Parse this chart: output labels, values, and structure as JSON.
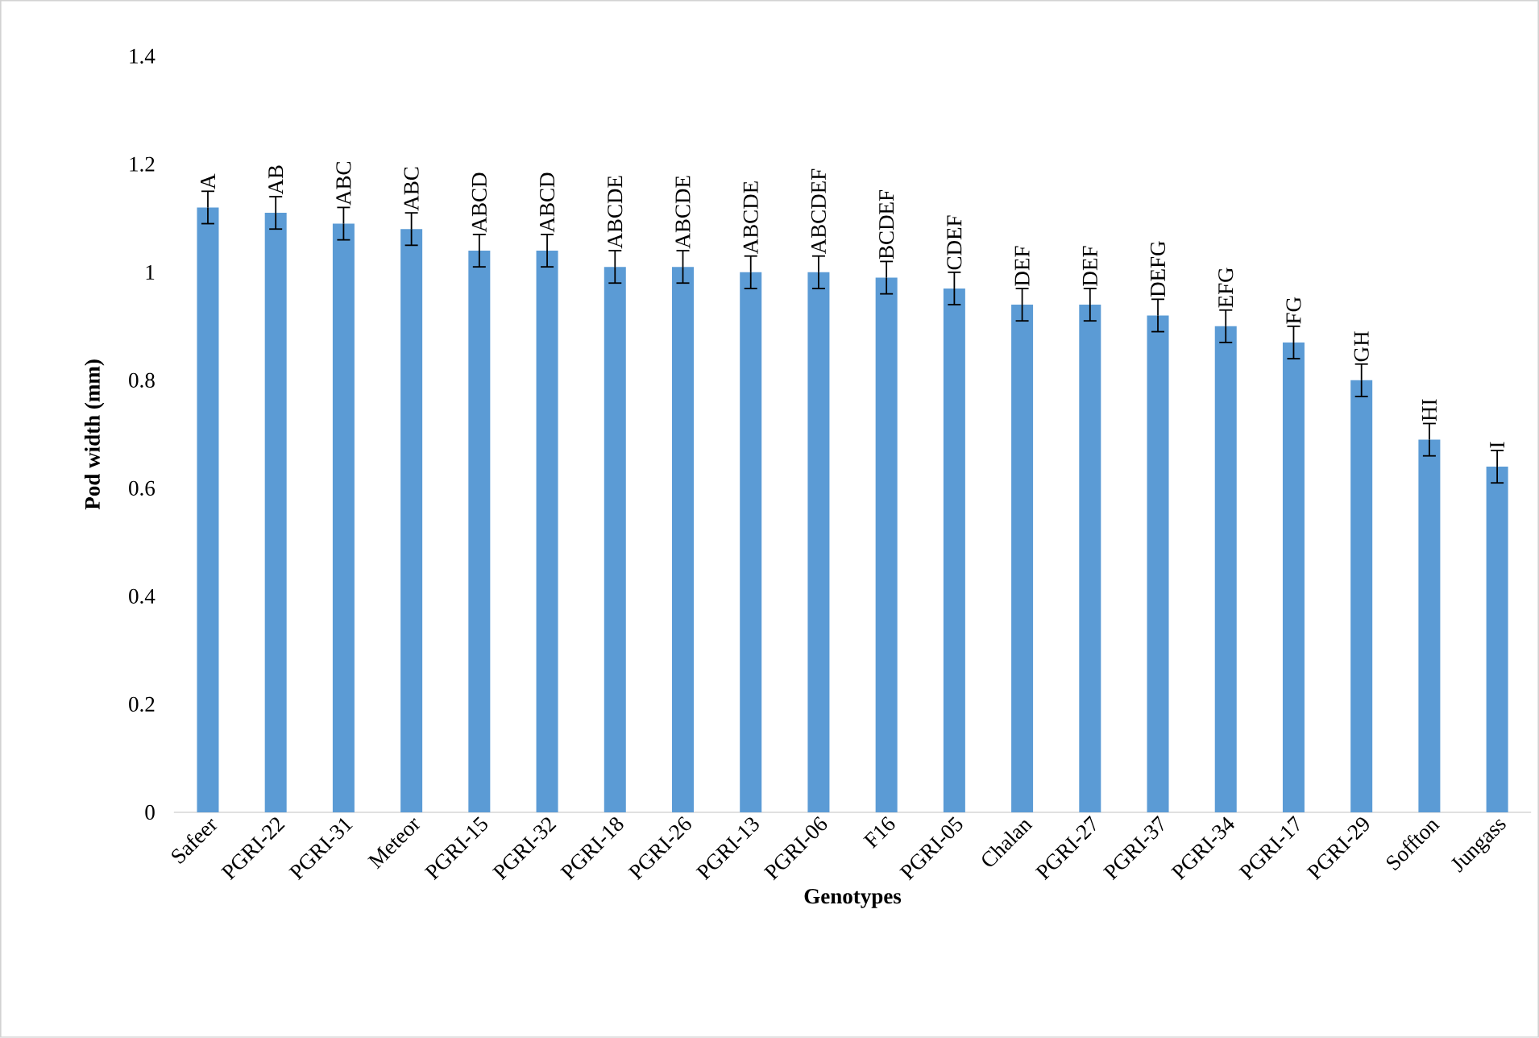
{
  "chart_data": {
    "type": "bar",
    "xlabel": "Genotypes",
    "ylabel": "Pod width (mm)",
    "categories": [
      "Safeer",
      "PGRI-22",
      "PGRI-31",
      "Meteor",
      "PGRI-15",
      "PGRI-32",
      "PGRI-18",
      "PGRI-26",
      "PGRI-13",
      "PGRI-06",
      "F16",
      "PGRI-05",
      "Chalan",
      "PGRI-27",
      "PGRI-37",
      "PGRI-34",
      "PGRI-17",
      "PGRI-29",
      "Soffton",
      "Jungass"
    ],
    "values": [
      1.12,
      1.11,
      1.09,
      1.08,
      1.04,
      1.04,
      1.01,
      1.01,
      1.0,
      1.0,
      0.99,
      0.97,
      0.94,
      0.94,
      0.92,
      0.9,
      0.87,
      0.8,
      0.69,
      0.64
    ],
    "errors": [
      0.03,
      0.03,
      0.03,
      0.03,
      0.03,
      0.03,
      0.03,
      0.03,
      0.03,
      0.03,
      0.03,
      0.03,
      0.03,
      0.03,
      0.03,
      0.03,
      0.03,
      0.03,
      0.03,
      0.03
    ],
    "value_labels": [
      "A",
      "AB",
      "ABC",
      "ABC",
      "ABCD",
      "ABCD",
      "ABCDE",
      "ABCDE",
      "ABCDE",
      "ABCDEF",
      "BCDEF",
      "CDEF",
      "DEF",
      "DEF",
      "DEFG",
      "EFG",
      "FG",
      "GH",
      "HI",
      "I"
    ],
    "color": "#5b9bd5",
    "ylim": [
      0,
      1.4
    ],
    "yticks": [
      0,
      0.2,
      0.4,
      0.6,
      0.8,
      1,
      1.2,
      1.4
    ],
    "grid": false
  }
}
